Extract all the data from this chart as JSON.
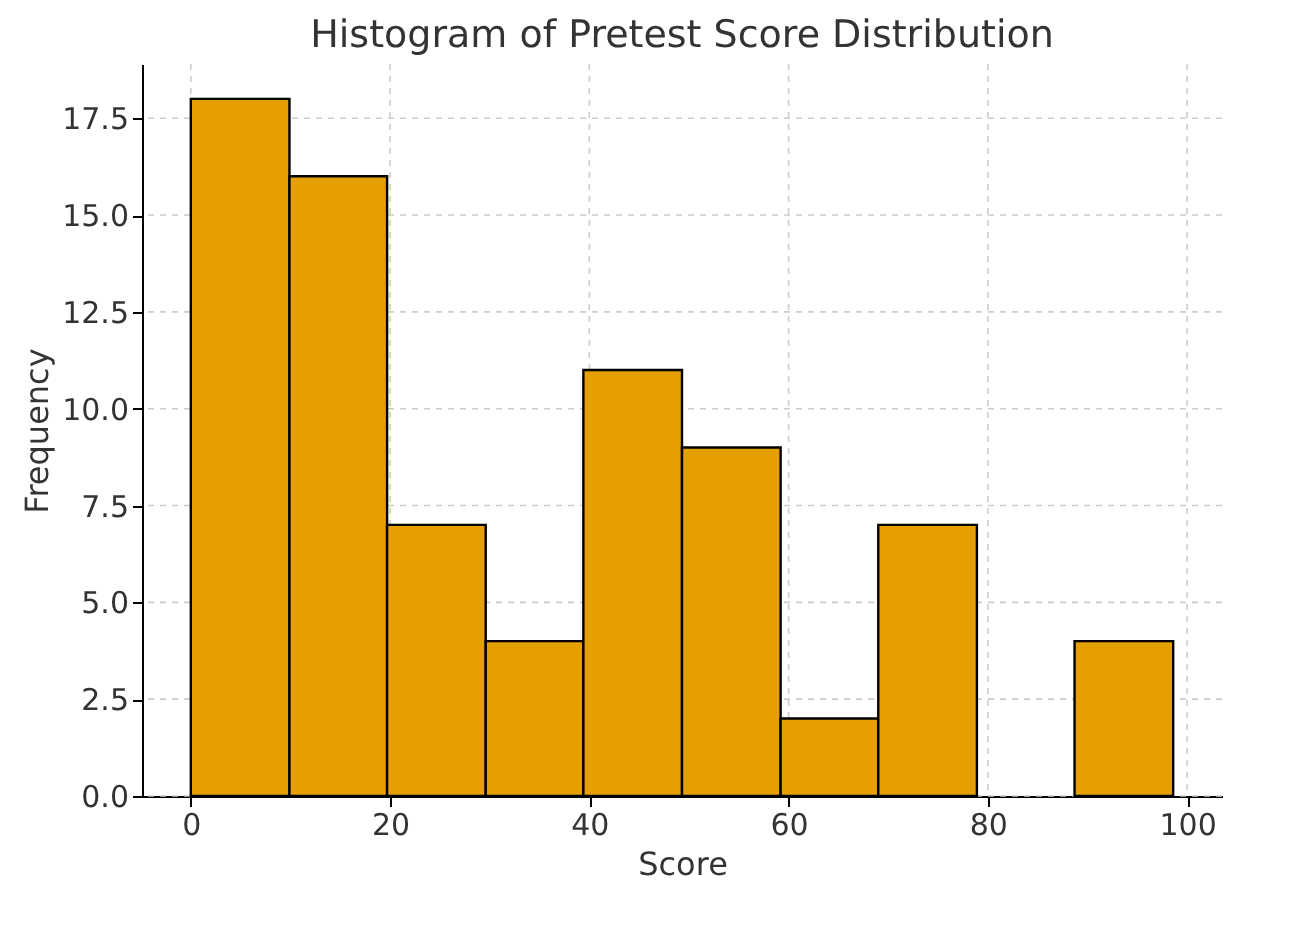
{
  "chart_data": {
    "type": "histogram",
    "title": "Histogram of Pretest Score Distribution",
    "xlabel": "Score",
    "ylabel": "Frequency",
    "bins": [
      0,
      9.9,
      19.7,
      29.6,
      39.4,
      49.3,
      59.2,
      69.0,
      78.9,
      88.7,
      98.6
    ],
    "values": [
      18,
      16,
      7,
      4,
      11,
      9,
      2,
      7,
      0,
      4
    ],
    "color": "#e69f00",
    "xlim": [
      -4.9,
      103.5
    ],
    "xticks": [
      0,
      20,
      40,
      60,
      80,
      100
    ],
    "ylim": [
      0,
      18.9
    ],
    "yticks": [
      {
        "value": 0,
        "label": "0.0"
      },
      {
        "value": 2.5,
        "label": "2.5"
      },
      {
        "value": 5,
        "label": "5.0"
      },
      {
        "value": 7.5,
        "label": "7.5"
      },
      {
        "value": 10,
        "label": "10.0"
      },
      {
        "value": 12.5,
        "label": "12.5"
      },
      {
        "value": 15,
        "label": "15.0"
      },
      {
        "value": 17.5,
        "label": "17.5"
      }
    ],
    "grid": true
  }
}
